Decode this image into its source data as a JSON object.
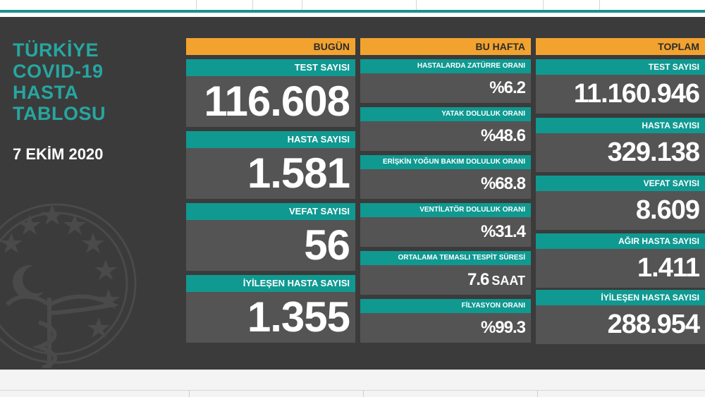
{
  "header": {
    "title_lines": [
      "TÜRKİYE",
      "COVID-19",
      "HASTA",
      "TABLOSU"
    ],
    "date": "7 EKİM 2020"
  },
  "bugun": {
    "heading": "BUGÜN",
    "cards": [
      {
        "label": "TEST SAYISI",
        "value": "116.608"
      },
      {
        "label": "HASTA SAYISI",
        "value": "1.581"
      },
      {
        "label": "VEFAT SAYISI",
        "value": "56"
      },
      {
        "label": "İYİLEŞEN HASTA SAYISI",
        "value": "1.355"
      }
    ]
  },
  "bu_hafta": {
    "heading": "BU HAFTA",
    "cards": [
      {
        "label": "HASTALARDA ZATÜRRE ORANI",
        "value": "%6.2",
        "unit": ""
      },
      {
        "label": "YATAK DOLULUK ORANI",
        "value": "%48.6",
        "unit": ""
      },
      {
        "label": "ERİŞKİN YOĞUN BAKIM DOLULUK ORANI",
        "value": "%68.8",
        "unit": ""
      },
      {
        "label": "VENTİLATÖR DOLULUK ORANI",
        "value": "%31.4",
        "unit": ""
      },
      {
        "label": "ORTALAMA TEMASLI TESPİT SÜRESİ",
        "value": "7.6",
        "unit": "SAAT"
      },
      {
        "label": "FİLYASYON ORANI",
        "value": "%99.3",
        "unit": ""
      }
    ]
  },
  "toplam": {
    "heading": "TOPLAM",
    "cards": [
      {
        "label": "TEST SAYISI",
        "value": "11.160.946"
      },
      {
        "label": "HASTA SAYISI",
        "value": "329.138"
      },
      {
        "label": "VEFAT SAYISI",
        "value": "8.609"
      },
      {
        "label": "AĞIR HASTA SAYISI",
        "value": "1.411"
      },
      {
        "label": "İYİLEŞEN HASTA SAYISI",
        "value": "288.954"
      }
    ]
  },
  "colors": {
    "background": "#3b3b3b",
    "card": "#545454",
    "label_teal": "#0f9991",
    "heading_orange": "#f2a32f",
    "title_teal": "#26a6a0"
  },
  "icons": [
    "star-icon",
    "crescent-icon",
    "caduceus-icon"
  ]
}
